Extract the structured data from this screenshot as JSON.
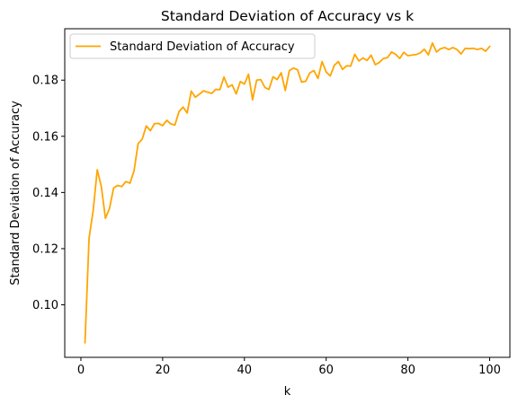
{
  "chart_data": {
    "type": "line",
    "title": "Standard Deviation of Accuracy vs k",
    "xlabel": "k",
    "ylabel": "Standard Deviation of Accuracy",
    "xlim": [
      -3.95,
      104.95
    ],
    "ylim": [
      0.0813,
      0.1983
    ],
    "xticks": [
      0,
      20,
      40,
      60,
      80,
      100
    ],
    "yticks": [
      0.1,
      0.12,
      0.14,
      0.16,
      0.18
    ],
    "xtick_labels": [
      "0",
      "20",
      "40",
      "60",
      "80",
      "100"
    ],
    "ytick_labels": [
      "0.10",
      "0.12",
      "0.14",
      "0.16",
      "0.18"
    ],
    "grid": false,
    "legend": {
      "placement": "upper-left"
    },
    "series": [
      {
        "name": "Standard Deviation of Accuracy",
        "color": "#FFA500",
        "x": [
          1,
          2,
          3,
          4,
          5,
          6,
          7,
          8,
          9,
          10,
          11,
          12,
          13,
          14,
          15,
          16,
          17,
          18,
          19,
          20,
          21,
          22,
          23,
          24,
          25,
          26,
          27,
          28,
          29,
          30,
          31,
          32,
          33,
          34,
          35,
          36,
          37,
          38,
          39,
          40,
          41,
          42,
          43,
          44,
          45,
          46,
          47,
          48,
          49,
          50,
          51,
          52,
          53,
          54,
          55,
          56,
          57,
          58,
          59,
          60,
          61,
          62,
          63,
          64,
          65,
          66,
          67,
          68,
          69,
          70,
          71,
          72,
          73,
          74,
          75,
          76,
          77,
          78,
          79,
          80,
          81,
          82,
          83,
          84,
          85,
          86,
          87,
          88,
          89,
          90,
          91,
          92,
          93,
          94,
          95,
          96,
          97,
          98,
          99,
          100
        ],
        "y": [
          0.0865,
          0.1238,
          0.1335,
          0.1481,
          0.1421,
          0.1308,
          0.1343,
          0.1416,
          0.1425,
          0.1421,
          0.1439,
          0.1433,
          0.1477,
          0.1574,
          0.159,
          0.1637,
          0.162,
          0.1645,
          0.1646,
          0.1638,
          0.1657,
          0.1644,
          0.164,
          0.1688,
          0.1704,
          0.1683,
          0.1761,
          0.1739,
          0.175,
          0.1762,
          0.1757,
          0.1753,
          0.1767,
          0.1766,
          0.1811,
          0.1775,
          0.1783,
          0.1751,
          0.1795,
          0.1786,
          0.1821,
          0.173,
          0.18,
          0.1802,
          0.1774,
          0.1767,
          0.1812,
          0.1802,
          0.1826,
          0.1763,
          0.1834,
          0.1843,
          0.1837,
          0.1793,
          0.1796,
          0.1826,
          0.1834,
          0.1806,
          0.1866,
          0.1829,
          0.1815,
          0.1853,
          0.1866,
          0.1838,
          0.1851,
          0.185,
          0.1892,
          0.1868,
          0.1879,
          0.187,
          0.1889,
          0.1855,
          0.1863,
          0.1877,
          0.188,
          0.19,
          0.1892,
          0.1877,
          0.1899,
          0.1887,
          0.1889,
          0.1891,
          0.1897,
          0.191,
          0.189,
          0.1932,
          0.19,
          0.1912,
          0.1916,
          0.1909,
          0.1916,
          0.1909,
          0.1893,
          0.1913,
          0.1912,
          0.1913,
          0.1909,
          0.1913,
          0.1903,
          0.192
        ]
      }
    ]
  }
}
